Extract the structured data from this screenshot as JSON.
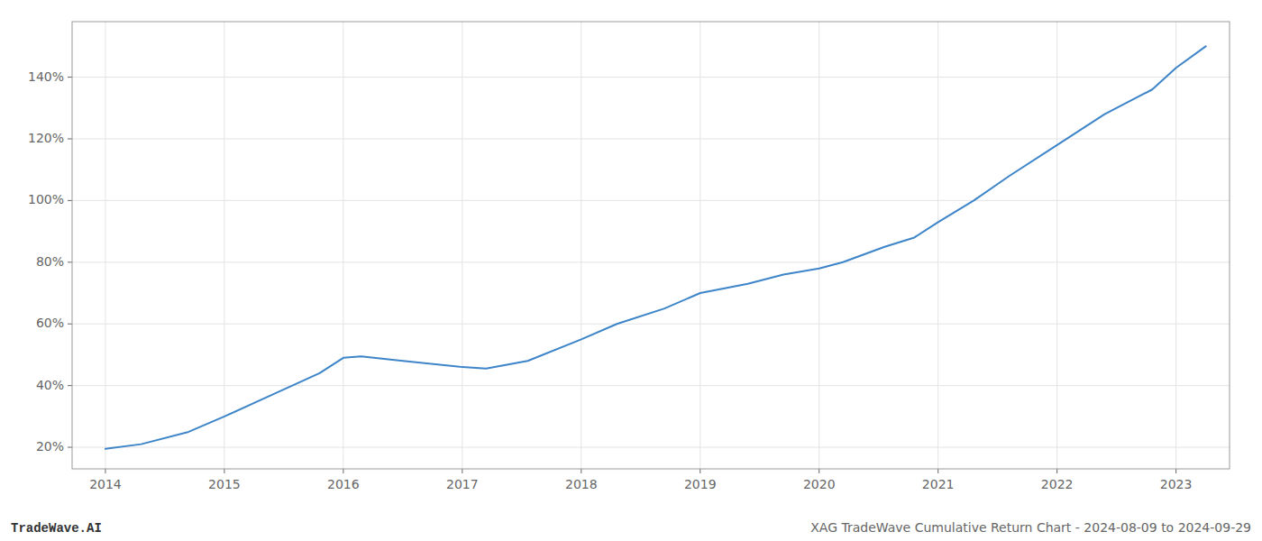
{
  "chart_data": {
    "type": "line",
    "x": [
      2014.0,
      2014.3,
      2014.7,
      2015.0,
      2015.4,
      2015.8,
      2016.0,
      2016.15,
      2016.5,
      2017.0,
      2017.2,
      2017.55,
      2018.0,
      2018.3,
      2018.7,
      2019.0,
      2019.4,
      2019.7,
      2020.0,
      2020.2,
      2020.55,
      2020.8,
      2021.0,
      2021.3,
      2021.6,
      2022.0,
      2022.4,
      2022.8,
      2023.0,
      2023.25
    ],
    "values": [
      19.5,
      21,
      25,
      30,
      37,
      44,
      49,
      49.5,
      48,
      46,
      45.5,
      48,
      55,
      60,
      65,
      70,
      73,
      76,
      78,
      80,
      85,
      88,
      93,
      100,
      108,
      118,
      128,
      136,
      143,
      150
    ],
    "color": "#3d85c8",
    "xlim": [
      2013.72,
      2023.45
    ],
    "ylim": [
      13,
      158
    ],
    "xticks": [
      2014,
      2015,
      2016,
      2017,
      2018,
      2019,
      2020,
      2021,
      2022,
      2023
    ],
    "yticks": [
      {
        "value": 20,
        "label": "20%"
      },
      {
        "value": 40,
        "label": "40%"
      },
      {
        "value": 60,
        "label": "60%"
      },
      {
        "value": 80,
        "label": "80%"
      },
      {
        "value": 100,
        "label": "100%"
      },
      {
        "value": 120,
        "label": "120%"
      },
      {
        "value": 140,
        "label": "140%"
      }
    ],
    "grid": true,
    "annotations": [
      "TradeWave.AI",
      "XAG TradeWave Cumulative Return Chart - 2024-08-09 to 2024-09-29"
    ]
  }
}
